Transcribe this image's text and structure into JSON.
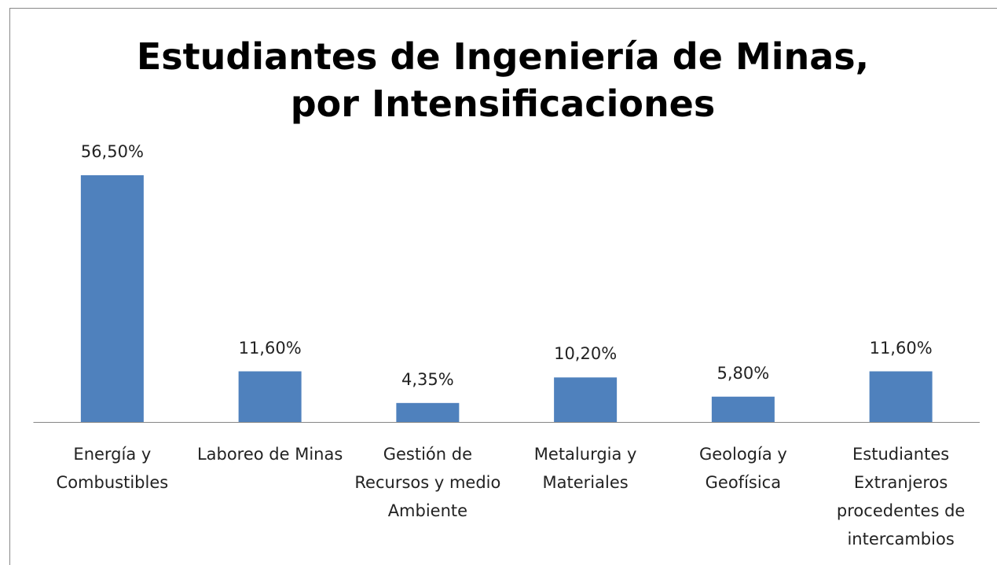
{
  "chart_data": {
    "type": "bar",
    "title": "Estudiantes de Ingeniería de Minas, por Intensificaciones",
    "categories": [
      "Energía y Combustibles",
      "Laboreo de Minas",
      "Gestión de Recursos y medio Ambiente",
      "Metalurgia y Materiales",
      "Geología y Geofísica",
      "Estudiantes Extranjeros procedentes de intercambios"
    ],
    "values": [
      56.5,
      11.6,
      4.35,
      10.2,
      5.8,
      11.6
    ],
    "value_labels": [
      "56,50%",
      "11,60%",
      "4,35%",
      "10,20%",
      "5,80%",
      "11,60%"
    ],
    "color": "#4f81bd"
  }
}
